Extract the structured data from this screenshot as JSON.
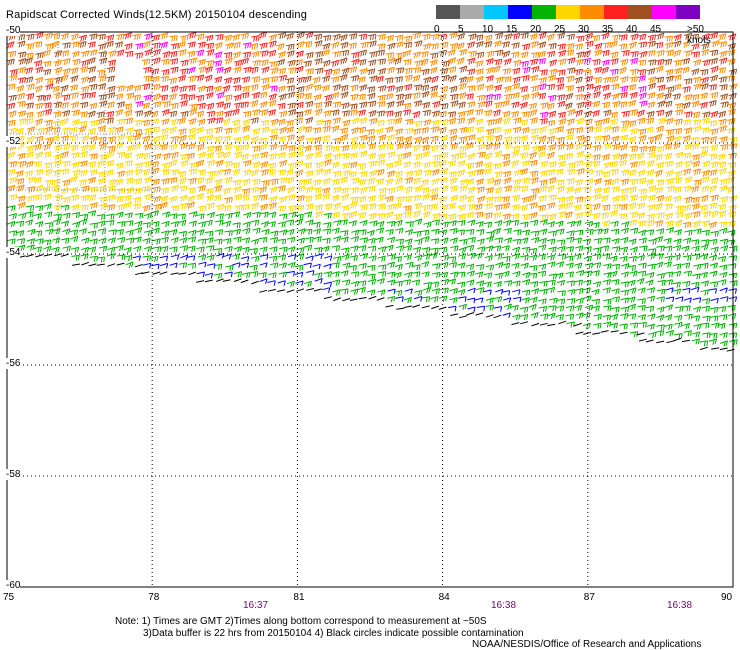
{
  "header": {
    "title": "Rapidscat Corrected Winds(12.5KM) 20150104 descending"
  },
  "legend": {
    "unit_label": ">50 knots",
    "bins": [
      {
        "label": "0",
        "color": "#555555"
      },
      {
        "label": "5",
        "color": "#aaaaaa"
      },
      {
        "label": "10",
        "color": "#00c8ff"
      },
      {
        "label": "15",
        "color": "#0000ff"
      },
      {
        "label": "20",
        "color": "#00b400"
      },
      {
        "label": "25",
        "color": "#ffd700"
      },
      {
        "label": "30",
        "color": "#ff8c00"
      },
      {
        "label": "35",
        "color": "#ff2020"
      },
      {
        "label": "40",
        "color": "#a05020"
      },
      {
        "label": "45",
        "color": "#ff00ff"
      },
      {
        "label": "",
        "color": "#8000c0"
      }
    ]
  },
  "map": {
    "lon_ticks": [
      "75",
      "78",
      "81",
      "84",
      "87",
      "90"
    ],
    "lat_ticks": [
      "-50",
      "-52",
      "-54",
      "-56",
      "-58",
      "-60"
    ],
    "time_labels": [
      "16:37",
      "16:38",
      "16:38"
    ],
    "grid": true,
    "fine_box_grid": true
  },
  "wind_field": {
    "bands": [
      {
        "name": "black",
        "color": "#000000",
        "speed_bin": "0-5"
      },
      {
        "name": "blue",
        "color": "#0000ff",
        "speed_bin": "10-15"
      },
      {
        "name": "green",
        "color": "#00b400",
        "speed_bin": "15-20"
      },
      {
        "name": "yellow",
        "color": "#ffd700",
        "speed_bin": "20-25"
      },
      {
        "name": "orange",
        "color": "#ff8c00",
        "speed_bin": "25-30"
      },
      {
        "name": "red",
        "color": "#ff2020",
        "speed_bin": "30-35"
      },
      {
        "name": "brown",
        "color": "#a05020",
        "speed_bin": "35-40"
      },
      {
        "name": "magenta",
        "color": "#ff00ff",
        "speed_bin": "40-45"
      }
    ]
  },
  "notes": {
    "line1": "Note: 1) Times are GMT 2)Times along bottom correspond to measurement at ~50S",
    "line2": "3)Data buffer is 22 hrs from 20150104 4) Black circles indicate possible contamination",
    "credit": "NOAA/NESDIS/Office of Research and Applications"
  }
}
